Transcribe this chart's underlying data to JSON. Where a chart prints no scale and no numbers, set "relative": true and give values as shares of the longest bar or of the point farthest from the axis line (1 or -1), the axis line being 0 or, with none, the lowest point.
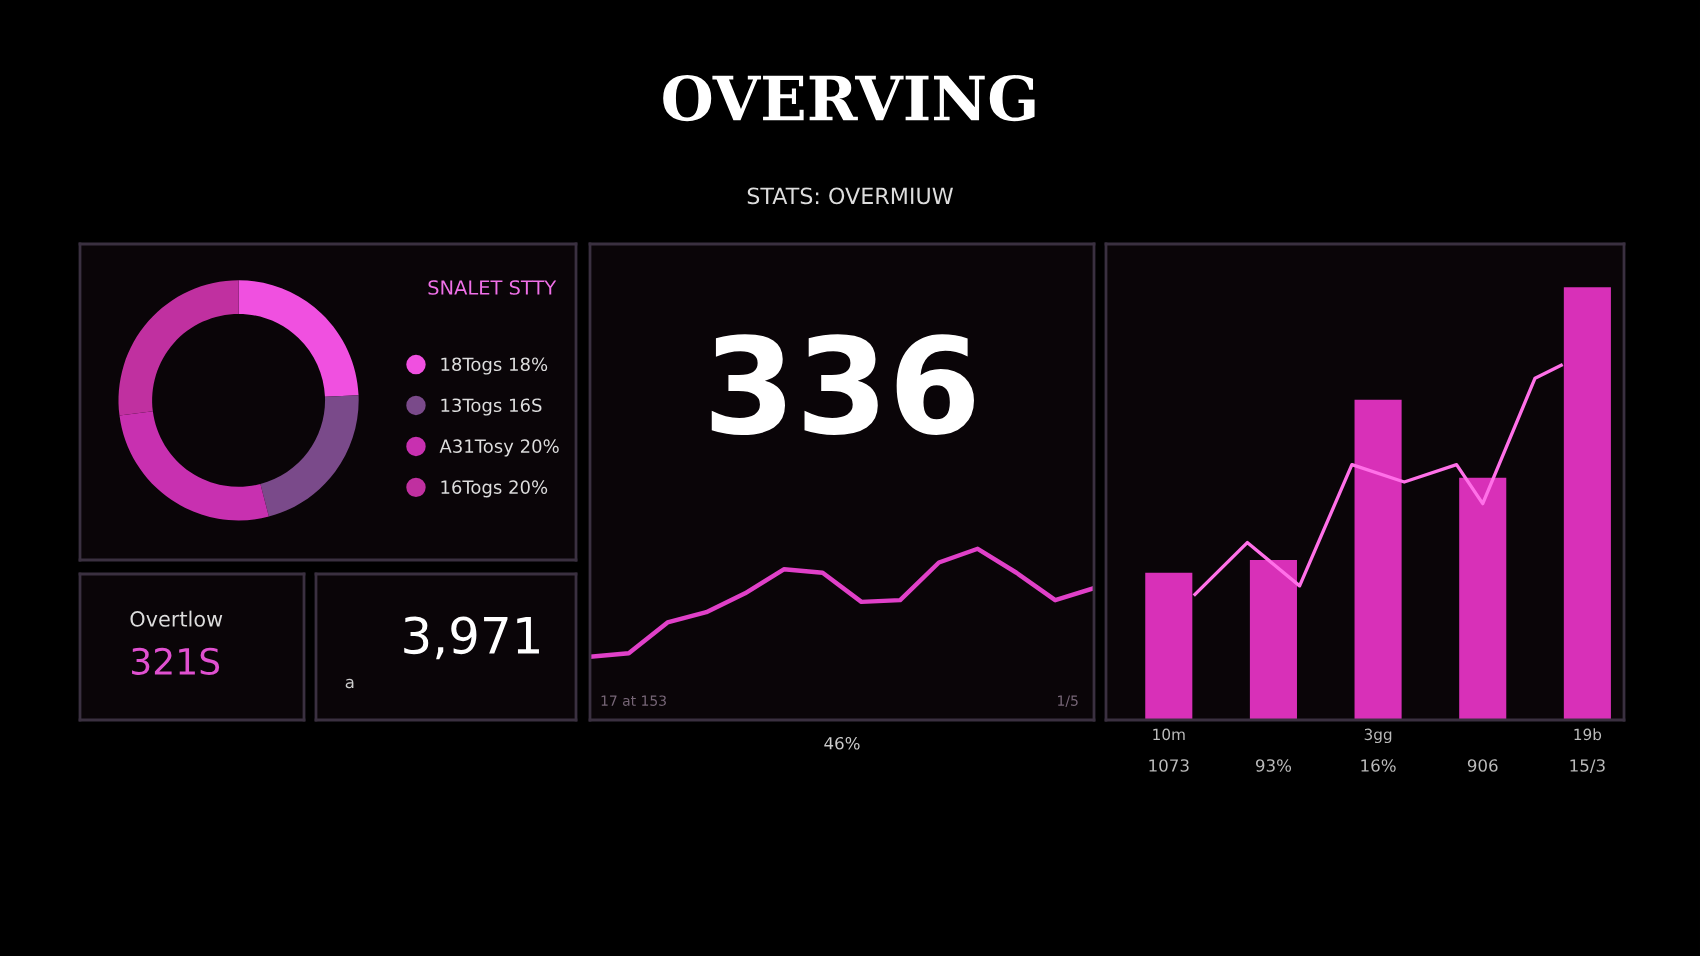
{
  "chart_data": [
    {
      "type": "other",
      "title": "OVERVING",
      "subtitle": "STATS: OVERMIUW"
    },
    {
      "type": "donut",
      "title": "SNALET STTY",
      "categories": [
        "18Togs 18%",
        "13Togs 16S",
        "A31Tosy 20%",
        "16Togs 20%"
      ],
      "values": [
        18,
        16,
        20,
        20
      ],
      "colors": [
        "#f050e0",
        "#7a4a8a",
        "#c830b0",
        "#c030a0"
      ],
      "legend": "right"
    },
    {
      "type": "other",
      "title": "Overtlow",
      "annotations": [
        "321S"
      ]
    },
    {
      "type": "other",
      "annotations": [
        "a",
        "3,971"
      ]
    },
    {
      "type": "line",
      "relative": true,
      "categories": [
        null,
        null,
        null,
        null,
        null,
        null,
        null,
        null,
        null,
        null,
        null,
        null,
        null,
        null
      ],
      "series": [
        {
          "color": "#e040c8",
          "values": [
            0.37,
            0.39,
            0.57,
            0.63,
            0.74,
            0.88,
            0.86,
            0.69,
            0.7,
            0.92,
            1,
            0.86,
            0.7,
            0.77
          ]
        }
      ],
      "xlabel": "46%",
      "annotations": [
        "336",
        "17 at 153",
        "1/5"
      ]
    },
    {
      "type": "bar",
      "relative": true,
      "categories": [
        "1073",
        null,
        null,
        null,
        "93%",
        null,
        null,
        null,
        "16%",
        null,
        null,
        null,
        "906",
        null,
        null,
        null,
        "15/3"
      ],
      "series": [
        {
          "color": "#d830b8",
          "values": [
            0.34,
            null,
            null,
            null,
            0.37,
            null,
            null,
            null,
            0.74,
            null,
            null,
            null,
            0.56,
            null,
            null,
            null,
            1
          ]
        },
        {
          "type": "line",
          "color": "#ff70e8",
          "values": [
            null,
            0.29,
            null,
            0.41,
            null,
            0.31,
            null,
            0.59,
            null,
            0.55,
            null,
            0.59,
            0.5,
            null,
            0.79,
            0.82,
            null
          ]
        }
      ],
      "annotations": [
        {
          "text": "10m",
          "x": "1073",
          "y": 0
        },
        {
          "text": "3gg",
          "x": "16%",
          "y": 0
        },
        {
          "text": "19b",
          "x": "15/3",
          "y": 0
        }
      ]
    }
  ]
}
